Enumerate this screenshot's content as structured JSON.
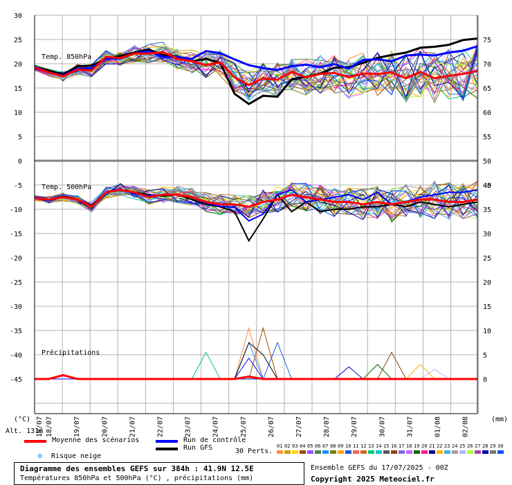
{
  "chart_data": {
    "type": "line",
    "x_ticks": [
      "18/07",
      "19/07",
      "20/07",
      "21/07",
      "22/07",
      "23/07",
      "24/07",
      "25/07",
      "26/07",
      "27/07",
      "28/07",
      "29/07",
      "30/07",
      "31/07",
      "01/08",
      "02/08"
    ],
    "x_start_label": "18/07",
    "x_unit_days": 16,
    "left_axis_label": "(°C)",
    "right_axis_label": "(mm)",
    "left_ticks": [
      30,
      25,
      20,
      15,
      10,
      5,
      0,
      -5,
      -10,
      -15,
      -20,
      -25,
      -30,
      -35,
      -40,
      -45
    ],
    "right_ticks_temp850": [
      75,
      70,
      65,
      60,
      55,
      50,
      45
    ],
    "right_ticks_temp500": [
      40,
      35,
      30,
      25,
      20,
      15,
      10,
      5,
      0
    ],
    "panels": {
      "temp850": {
        "label": "Temp. 850hPa",
        "mean": [
          19.2,
          18.2,
          17.4,
          18.8,
          18.6,
          21.4,
          21.2,
          22.1,
          22.1,
          22.4,
          21.0,
          20.5,
          19.7,
          20.3,
          17.2,
          15.6,
          17.0,
          16.7,
          18.3,
          17.2,
          17.9,
          18.1,
          17.2,
          18.0,
          17.9,
          18.2,
          17.0,
          18.3,
          17.0,
          17.5,
          17.9,
          18.5
        ],
        "control": [
          19.4,
          18.2,
          17.5,
          19.0,
          19.1,
          21.0,
          21.1,
          22.1,
          22.6,
          21.4,
          21.4,
          21.0,
          22.6,
          22.2,
          20.9,
          19.7,
          19.1,
          18.7,
          19.5,
          19.8,
          19.3,
          19.9,
          19.0,
          20.8,
          20.9,
          20.5,
          21.7,
          21.9,
          21.7,
          22.3,
          22.7,
          23.6
        ],
        "gfs": [
          19.3,
          18.6,
          17.8,
          19.5,
          19.6,
          21.0,
          21.6,
          22.3,
          22.9,
          21.8,
          21.5,
          20.5,
          21.0,
          20.2,
          13.8,
          11.7,
          13.4,
          13.2,
          16.8,
          17.3,
          18.0,
          19.2,
          19.3,
          20.2,
          21.2,
          21.8,
          22.3,
          23.3,
          23.5,
          23.9,
          24.9,
          25.2
        ]
      },
      "temp500": {
        "label": "Temp. 500hPa",
        "mean": [
          -7.7,
          -8.0,
          -7.5,
          -8.0,
          -9.5,
          -6.5,
          -6.0,
          -6.5,
          -7.5,
          -7.0,
          -7.0,
          -7.5,
          -8.5,
          -9.0,
          -9.0,
          -9.5,
          -8.5,
          -8.0,
          -7.0,
          -7.5,
          -8.0,
          -8.5,
          -8.5,
          -9.0,
          -8.5,
          -9.0,
          -8.5,
          -8.0,
          -8.0,
          -8.5,
          -8.5,
          -8.0
        ],
        "control": [
          -7.8,
          -8.2,
          -7.4,
          -8.0,
          -9.5,
          -6.4,
          -5.8,
          -6.8,
          -7.2,
          -7.0,
          -7.0,
          -7.6,
          -8.7,
          -9.4,
          -9.6,
          -12.4,
          -11.0,
          -7.0,
          -6.0,
          -8.5,
          -8.0,
          -7.5,
          -7.0,
          -8.0,
          -6.5,
          -9.0,
          -8.5,
          -7.5,
          -7.0,
          -6.5,
          -6.5,
          -6.0
        ],
        "gfs": [
          -7.6,
          -8.0,
          -7.3,
          -8.0,
          -9.2,
          -6.5,
          -5.9,
          -6.5,
          -7.0,
          -7.3,
          -7.0,
          -8.0,
          -9.0,
          -9.5,
          -10.5,
          -16.5,
          -12.0,
          -7.0,
          -10.5,
          -8.5,
          -10.5,
          -10.0,
          -10.0,
          -9.5,
          -9.5,
          -9.0,
          -9.5,
          -8.5,
          -9.0,
          -9.5,
          -9.0,
          -8.5
        ]
      },
      "precip": {
        "label": "Précipitations",
        "mean": [
          0,
          0,
          0.8,
          0,
          0,
          0,
          0,
          0,
          0,
          0,
          0,
          0,
          0,
          0,
          0,
          0.5,
          0,
          0,
          0,
          0,
          0,
          0,
          0,
          0,
          0,
          0,
          0,
          0,
          0,
          0,
          0,
          0
        ],
        "control": [
          0,
          0,
          0,
          0,
          0,
          0,
          0,
          0,
          0,
          0,
          0,
          0,
          0,
          0,
          0,
          4.3,
          0,
          0,
          0,
          0,
          0,
          0,
          0,
          0,
          0,
          0,
          0,
          0,
          0,
          0,
          0,
          0
        ],
        "gfs": [
          0,
          0,
          0,
          0,
          0,
          0,
          0,
          0,
          0,
          0,
          0,
          0,
          0,
          0,
          0,
          7.5,
          5.0,
          0,
          0,
          0,
          0,
          0,
          0,
          0,
          0,
          0,
          0,
          0,
          0,
          0,
          0,
          0
        ],
        "peaks": [
          10.5,
          10.5,
          7.5,
          7.5,
          5.5,
          5.5,
          3.0,
          3.0,
          2.0,
          2.5
        ]
      }
    }
  },
  "altitude": "Alt. 131m",
  "legend": {
    "mean": "Moyenne des scénarios",
    "control": "Run de contrôle",
    "gfs": "Run GFS",
    "perts": "30 Perts.",
    "snow": "Risque neige",
    "colors": {
      "mean": "#ff0000",
      "control": "#0000ff",
      "gfs": "#000000",
      "snow": "#3aa8ff"
    },
    "pert_numbers": [
      "01",
      "02",
      "03",
      "04",
      "05",
      "06",
      "07",
      "08",
      "09",
      "10",
      "11",
      "12",
      "13",
      "14",
      "15",
      "16",
      "17",
      "18",
      "19",
      "20",
      "21",
      "22",
      "23",
      "24",
      "25",
      "26",
      "27",
      "28",
      "29",
      "30"
    ],
    "pert_colors": [
      "#ff8c3c",
      "#c8a000",
      "#ffd700",
      "#a04a00",
      "#9b4dff",
      "#3c8c3c",
      "#1e90ff",
      "#808000",
      "#ffa500",
      "#1e5adc",
      "#ff5c5c",
      "#d2691e",
      "#00c878",
      "#00c8c8",
      "#5a5a5a",
      "#8b4513",
      "#7b68ee",
      "#c864ff",
      "#006400",
      "#ff1493",
      "#00008b",
      "#ffb400",
      "#3cb4dc",
      "#a0a0a0",
      "#b4b4ff",
      "#aaff3c",
      "#aa3caa",
      "#0000aa",
      "#787878",
      "#0050ff"
    ]
  },
  "footer": {
    "title": "Diagramme des ensembles GEFS sur 384h : 41.9N 12.5E",
    "subtitle": "Températures 850hPa et 500hPa (°C) , précipitations (mm)",
    "run_info": "Ensemble GEFS du 17/07/2025 - 00Z",
    "copyright": "Copyright 2025 Meteociel.fr"
  }
}
